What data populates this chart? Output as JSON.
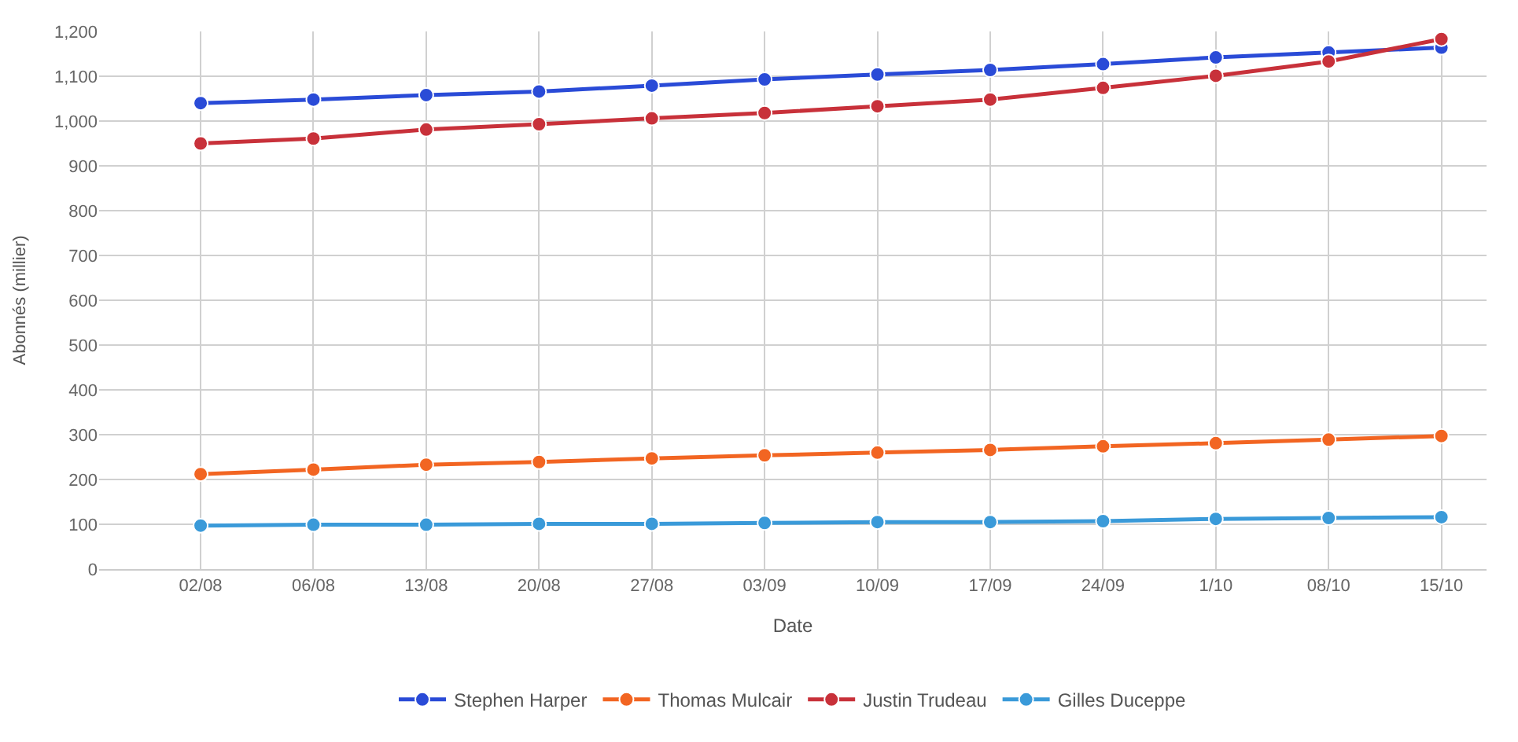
{
  "chart_data": {
    "type": "line",
    "xlabel": "Date",
    "ylabel": "Abonnés (millier)",
    "categories": [
      "02/08",
      "06/08",
      "13/08",
      "20/08",
      "27/08",
      "03/09",
      "10/09",
      "17/09",
      "24/09",
      "1/10",
      "08/10",
      "15/10"
    ],
    "series": [
      {
        "name": "Stephen Harper",
        "color": "#2a4bd7",
        "values": [
          1040,
          1048,
          1058,
          1066,
          1079,
          1093,
          1104,
          1114,
          1127,
          1142,
          1153,
          1164
        ]
      },
      {
        "name": "Thomas Mulcair",
        "color": "#f26522",
        "values": [
          212,
          222,
          233,
          239,
          247,
          254,
          260,
          266,
          274,
          281,
          289,
          297
        ]
      },
      {
        "name": "Justin Trudeau",
        "color": "#c8313a",
        "values": [
          950,
          961,
          981,
          993,
          1006,
          1018,
          1033,
          1048,
          1074,
          1101,
          1133,
          1183
        ]
      },
      {
        "name": "Gilles Duceppe",
        "color": "#3a9ad9",
        "values": [
          97,
          99,
          99,
          101,
          101,
          103,
          105,
          105,
          107,
          112,
          114,
          116
        ]
      }
    ],
    "ylim": [
      0,
      1200
    ],
    "yticks": [
      0,
      100,
      200,
      300,
      400,
      500,
      600,
      700,
      800,
      900,
      {
        "value": 1000,
        "label": "1,000"
      },
      {
        "value": 1100,
        "label": "1,100"
      },
      {
        "value": 1200,
        "label": "1,200"
      }
    ],
    "grid": true,
    "legend": "bottom",
    "marker": "circle",
    "line_style": "solid"
  }
}
